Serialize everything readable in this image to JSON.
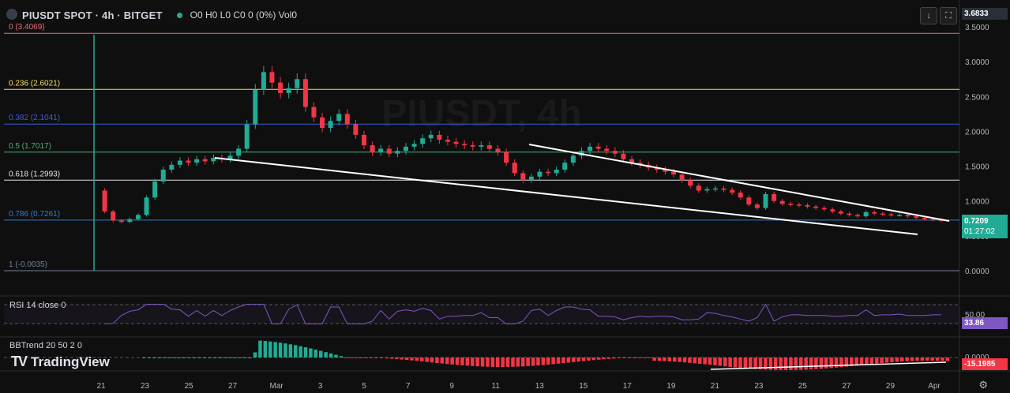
{
  "header": {
    "symbol": "PIUSDT SPOT · 4h · BITGET",
    "ohlc": "O0 H0 L0 C0 0 (0%) Vol0",
    "watermark": "PIUSDT, 4h"
  },
  "toolbar": {
    "download_icon": "arrow-down-icon",
    "fullscreen_icon": "fullscreen-icon"
  },
  "chart_data": {
    "type": "candlestick",
    "price_axis": [
      "3.5000",
      "3.0000",
      "2.5000",
      "2.0000",
      "1.5000",
      "1.0000",
      "0.5000",
      "0.0000"
    ],
    "ylim": [
      0,
      3.6
    ],
    "last_price": "0.7209",
    "countdown": "01:27:02",
    "top_price": "3.6833",
    "x_ticks": [
      "21",
      "23",
      "25",
      "27",
      "Mar",
      "3",
      "5",
      "7",
      "9",
      "11",
      "13",
      "15",
      "17",
      "19",
      "21",
      "23",
      "25",
      "27",
      "29",
      "Apr"
    ],
    "fib_levels": [
      {
        "label": "0 (3.4069)",
        "value": 3.4069,
        "color": "#e0707a"
      },
      {
        "label": "0.236 (2.6021)",
        "value": 2.6021,
        "color": "#f0e05a"
      },
      {
        "label": "0.382 (2.1041)",
        "value": 2.1041,
        "color": "#3d5fd8"
      },
      {
        "label": "0.5 (1.7017)",
        "value": 1.7017,
        "color": "#4caf70"
      },
      {
        "label": "0.618 (1.2993)",
        "value": 1.2993,
        "color": "#e0e3eb"
      },
      {
        "label": "0.786 (0.7261)",
        "value": 0.7261,
        "color": "#2f7fd0"
      },
      {
        "label": "1 (-0.0035)",
        "value": -0.0035,
        "color": "#7a7f99"
      }
    ],
    "trendlines": [
      {
        "from": [
          "26",
          1.62
        ],
        "to": [
          "31",
          0.52
        ]
      },
      {
        "from": [
          "13",
          1.82
        ],
        "to": [
          "Apr",
          0.72
        ]
      }
    ],
    "close_series": [
      1.15,
      0.85,
      0.72,
      0.7,
      0.74,
      0.8,
      1.05,
      1.28,
      1.45,
      1.52,
      1.58,
      1.55,
      1.6,
      1.57,
      1.62,
      1.6,
      1.65,
      1.75,
      2.1,
      2.6,
      2.85,
      2.7,
      2.55,
      2.62,
      2.75,
      2.35,
      2.2,
      2.05,
      2.15,
      2.25,
      2.1,
      1.95,
      1.8,
      1.7,
      1.75,
      1.68,
      1.72,
      1.78,
      1.82,
      1.9,
      1.95,
      1.88,
      1.85,
      1.82,
      1.8,
      1.78,
      1.8,
      1.75,
      1.7,
      1.55,
      1.4,
      1.3,
      1.35,
      1.42,
      1.4,
      1.45,
      1.55,
      1.65,
      1.72,
      1.78,
      1.75,
      1.72,
      1.68,
      1.6,
      1.55,
      1.52,
      1.48,
      1.45,
      1.42,
      1.38,
      1.3,
      1.22,
      1.15,
      1.17,
      1.18,
      1.16,
      1.12,
      1.05,
      0.95,
      0.9,
      1.1,
      1.0,
      0.96,
      0.95,
      0.94,
      0.92,
      0.9,
      0.88,
      0.85,
      0.82,
      0.8,
      0.78,
      0.84,
      0.82,
      0.81,
      0.8,
      0.8,
      0.78,
      0.76,
      0.74,
      0.73,
      0.72
    ],
    "rsi": {
      "label": "RSI 14 close 0",
      "value": "33.86",
      "level": "50.00"
    },
    "bbtrend": {
      "label": "BBTrend 20 50 2 0",
      "value": "-15.1985",
      "level": "0.0000"
    }
  },
  "footer": {
    "logo_text": "TradingView",
    "settings_icon": "gear-icon"
  }
}
